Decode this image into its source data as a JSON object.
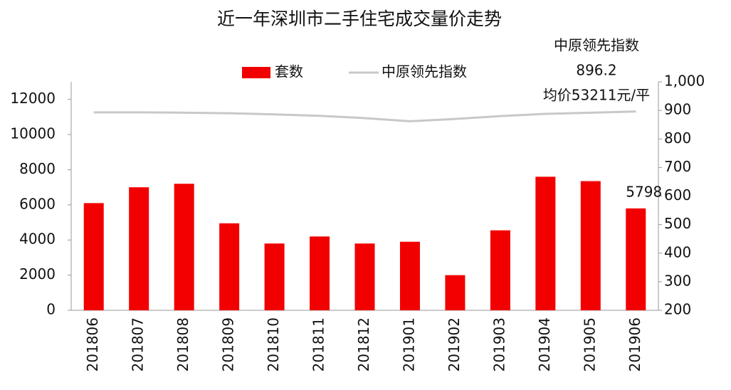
{
  "chart_data": {
    "type": "bar-line",
    "title": "近一年深圳市二手住宅成交量价走势",
    "categories": [
      "201806",
      "201807",
      "201808",
      "201809",
      "201810",
      "201811",
      "201812",
      "201901",
      "201902",
      "201903",
      "201904",
      "201905",
      "201906"
    ],
    "series": [
      {
        "name": "套数",
        "type": "bar",
        "color": "#f20000",
        "values": [
          6100,
          7000,
          7200,
          4950,
          3800,
          4200,
          3800,
          3900,
          2000,
          4550,
          7600,
          7350,
          5798
        ],
        "value_labels": [
          null,
          null,
          null,
          null,
          null,
          null,
          null,
          null,
          null,
          null,
          null,
          null,
          "5798"
        ]
      },
      {
        "name": "中原领先指数",
        "type": "line",
        "axis": "y2",
        "color": "#c8c8c8",
        "values": [
          893,
          893,
          892,
          890,
          886,
          881,
          873,
          862,
          870,
          880,
          888,
          892,
          896.2
        ],
        "value_labels": [
          null,
          null,
          null,
          null,
          null,
          null,
          null,
          null,
          null,
          null,
          null,
          null,
          "896.2"
        ]
      }
    ],
    "annotations": [
      "中原领先指数",
      "均价53211元/平"
    ],
    "ylim": [
      0,
      13000
    ],
    "yticks": [
      0,
      2000,
      4000,
      6000,
      8000,
      10000,
      12000
    ],
    "y2lim": [
      200,
      1000
    ],
    "y2ticks": [
      200,
      300,
      400,
      500,
      600,
      700,
      800,
      900,
      {
        "value": 1000,
        "label": "1,000"
      }
    ],
    "legend": "top"
  }
}
